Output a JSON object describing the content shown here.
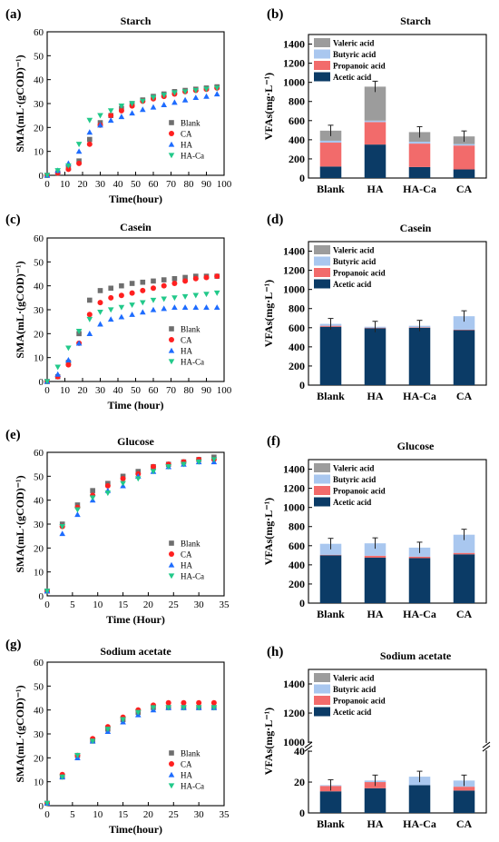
{
  "colors": {
    "blank": "#6e6e6e",
    "ca": "#ff2020",
    "ha": "#1e6cff",
    "haca": "#22c98a",
    "acetic": "#0b3b66",
    "propanoic": "#f26b6b",
    "butyric": "#a9c7ef",
    "valeric": "#9c9c9c"
  },
  "chart_data": [
    {
      "panel": "(a)",
      "type": "scatter",
      "title": "Starch",
      "xlabel": "Time(hour)",
      "ylabel": "SMA(mL·(gCOD)⁻¹)",
      "xlim": [
        0,
        100
      ],
      "ylim": [
        0,
        60
      ],
      "xticks": [
        0,
        10,
        20,
        30,
        40,
        50,
        60,
        70,
        80,
        90,
        100
      ],
      "yticks": [
        0,
        10,
        20,
        30,
        40,
        50,
        60
      ],
      "legend": "bottom-right",
      "series": [
        {
          "name": "Blank",
          "x": [
            0,
            6,
            12,
            18,
            24,
            30,
            36,
            42,
            48,
            54,
            60,
            66,
            72,
            78,
            84,
            90,
            96
          ],
          "y": [
            0,
            1,
            3,
            6,
            15,
            22,
            25,
            28,
            30,
            31.5,
            33,
            34,
            35,
            35.5,
            36,
            36.5,
            37
          ]
        },
        {
          "name": "CA",
          "x": [
            0,
            6,
            12,
            18,
            24,
            30,
            36,
            42,
            48,
            54,
            60,
            66,
            72,
            78,
            84,
            90,
            96
          ],
          "y": [
            0,
            1,
            2.5,
            5,
            13,
            21,
            25,
            27,
            29,
            31,
            32,
            33,
            34,
            35,
            35.5,
            36,
            36.5
          ]
        },
        {
          "name": "HA",
          "x": [
            0,
            6,
            12,
            18,
            24,
            30,
            36,
            42,
            48,
            54,
            60,
            66,
            72,
            78,
            84,
            90,
            96
          ],
          "y": [
            0,
            2,
            5,
            10,
            18,
            21,
            23,
            24.5,
            26,
            27.5,
            28.5,
            29.5,
            30.5,
            31.5,
            32.5,
            33,
            34
          ]
        },
        {
          "name": "HA-Ca",
          "x": [
            0,
            6,
            12,
            18,
            24,
            30,
            36,
            42,
            48,
            54,
            60,
            66,
            72,
            78,
            84,
            90,
            96
          ],
          "y": [
            0,
            2,
            4,
            13,
            23,
            25,
            27,
            29,
            30,
            31,
            32.5,
            33.5,
            34.5,
            35,
            35.5,
            36,
            36.5
          ]
        }
      ]
    },
    {
      "panel": "(b)",
      "type": "bar",
      "title": "Starch",
      "ylabel": "VFAs(mg·L⁻¹)",
      "ylim": [
        0,
        1500
      ],
      "yticks": [
        0,
        200,
        400,
        600,
        800,
        1000,
        1200,
        1400
      ],
      "categories": [
        "Blank",
        "HA",
        "HA-Ca",
        "CA"
      ],
      "legend": "top-left",
      "series": [
        {
          "name": "Acetic acid",
          "values": [
            120,
            350,
            115,
            90
          ]
        },
        {
          "name": "Propanoic acid",
          "values": [
            250,
            235,
            245,
            250
          ]
        },
        {
          "name": "Butyric acid",
          "values": [
            20,
            15,
            20,
            15
          ]
        },
        {
          "name": "Valeric acid",
          "values": [
            105,
            355,
            100,
            80
          ]
        }
      ],
      "totals": [
        495,
        955,
        480,
        435
      ]
    },
    {
      "panel": "(c)",
      "type": "scatter",
      "title": "Casein",
      "xlabel": "Time (hour)",
      "ylabel": "SMA(mL·(gCOD)⁻¹)",
      "xlim": [
        0,
        100
      ],
      "ylim": [
        0,
        60
      ],
      "xticks": [
        0,
        10,
        20,
        30,
        40,
        50,
        60,
        70,
        80,
        90,
        100
      ],
      "yticks": [
        0,
        10,
        20,
        30,
        40,
        50,
        60
      ],
      "legend": "bottom-right",
      "series": [
        {
          "name": "Blank",
          "x": [
            0,
            6,
            12,
            18,
            24,
            30,
            36,
            42,
            48,
            54,
            60,
            66,
            72,
            78,
            84,
            90,
            96
          ],
          "y": [
            0,
            2,
            8,
            20,
            34,
            38,
            39,
            40,
            41,
            41.5,
            42,
            42.5,
            43,
            43.5,
            44,
            44,
            44
          ]
        },
        {
          "name": "CA",
          "x": [
            0,
            6,
            12,
            18,
            24,
            30,
            36,
            42,
            48,
            54,
            60,
            66,
            72,
            78,
            84,
            90,
            96
          ],
          "y": [
            0,
            2,
            7,
            16,
            28,
            33,
            35,
            36,
            37,
            38,
            39,
            40,
            41,
            42,
            43,
            43.5,
            44
          ]
        },
        {
          "name": "HA",
          "x": [
            0,
            6,
            12,
            18,
            24,
            30,
            36,
            42,
            48,
            54,
            60,
            66,
            72,
            78,
            84,
            90,
            96
          ],
          "y": [
            0,
            3,
            9,
            16,
            20,
            24,
            26,
            27,
            28,
            29,
            30,
            30.5,
            31,
            31,
            31,
            31,
            31
          ]
        },
        {
          "name": "HA-Ca",
          "x": [
            0,
            6,
            12,
            18,
            24,
            30,
            36,
            42,
            48,
            54,
            60,
            66,
            72,
            78,
            84,
            90,
            96
          ],
          "y": [
            0,
            6,
            14,
            21,
            26,
            29,
            30,
            31,
            32,
            33,
            34,
            34.5,
            35,
            35.5,
            36,
            36.5,
            37
          ]
        }
      ]
    },
    {
      "panel": "(d)",
      "type": "bar",
      "title": "Casein",
      "ylabel": "VFAs(mg·L⁻¹)",
      "ylim": [
        0,
        1500
      ],
      "yticks": [
        0,
        200,
        400,
        600,
        800,
        1000,
        1200,
        1400
      ],
      "categories": [
        "Blank",
        "HA",
        "HA-Ca",
        "CA"
      ],
      "legend": "top-left",
      "series": [
        {
          "name": "Acetic acid",
          "values": [
            610,
            595,
            600,
            575
          ]
        },
        {
          "name": "Propanoic acid",
          "values": [
            10,
            5,
            5,
            5
          ]
        },
        {
          "name": "Butyric acid",
          "values": [
            20,
            10,
            15,
            140
          ]
        },
        {
          "name": "Valeric acid",
          "values": [
            0,
            0,
            0,
            0
          ]
        }
      ],
      "totals": [
        640,
        610,
        620,
        720
      ]
    },
    {
      "panel": "(e)",
      "type": "scatter",
      "title": "Glucose",
      "xlabel": "Time (Hour)",
      "ylabel": "SMA(mL·(gCOD)⁻¹)",
      "xlim": [
        0,
        35
      ],
      "ylim": [
        0,
        60
      ],
      "xticks": [
        0,
        5,
        10,
        15,
        20,
        25,
        30,
        35
      ],
      "yticks": [
        0,
        10,
        20,
        30,
        40,
        50,
        60
      ],
      "legend": "bottom-right",
      "series": [
        {
          "name": "Blank",
          "x": [
            0,
            3,
            6,
            9,
            12,
            15,
            18,
            21,
            24,
            27,
            30,
            33
          ],
          "y": [
            2,
            30,
            38,
            44,
            47,
            50,
            52,
            54,
            55,
            56,
            57,
            58
          ]
        },
        {
          "name": "CA",
          "x": [
            0,
            3,
            6,
            9,
            12,
            15,
            18,
            21,
            24,
            27,
            30,
            33
          ],
          "y": [
            2,
            29,
            37,
            42,
            46,
            49,
            51,
            54,
            55,
            56,
            57,
            57
          ]
        },
        {
          "name": "HA",
          "x": [
            0,
            3,
            6,
            9,
            12,
            15,
            18,
            21,
            24,
            27,
            30,
            33
          ],
          "y": [
            2,
            26,
            34,
            40,
            44,
            46,
            50,
            52,
            54,
            55,
            56,
            56
          ]
        },
        {
          "name": "HA-Ca",
          "x": [
            0,
            3,
            6,
            9,
            12,
            15,
            18,
            21,
            24,
            27,
            30,
            33
          ],
          "y": [
            2,
            29,
            36,
            41,
            43,
            47,
            49,
            52,
            54,
            55,
            56,
            57
          ]
        }
      ]
    },
    {
      "panel": "(f)",
      "type": "bar",
      "title": "Glucose",
      "ylabel": "VFAs(mg·L⁻¹)",
      "ylim": [
        0,
        1500
      ],
      "yticks": [
        0,
        200,
        400,
        600,
        800,
        1000,
        1200,
        1400
      ],
      "categories": [
        "Blank",
        "HA",
        "HA-Ca",
        "CA"
      ],
      "legend": "top-left",
      "series": [
        {
          "name": "Acetic acid",
          "values": [
            500,
            475,
            470,
            510
          ]
        },
        {
          "name": "Propanoic acid",
          "values": [
            5,
            20,
            15,
            15
          ]
        },
        {
          "name": "Butyric acid",
          "values": [
            115,
            130,
            95,
            190
          ]
        },
        {
          "name": "Valeric acid",
          "values": [
            0,
            0,
            0,
            0
          ]
        }
      ],
      "totals": [
        620,
        625,
        580,
        715
      ]
    },
    {
      "panel": "(g)",
      "type": "scatter",
      "title": "Sodium acetate",
      "xlabel": "Time(hour)",
      "ylabel": "SMA(mL·(gCOD)⁻¹)",
      "xlim": [
        0,
        35
      ],
      "ylim": [
        0,
        60
      ],
      "xticks": [
        0,
        5,
        10,
        15,
        20,
        25,
        30,
        35
      ],
      "yticks": [
        0,
        10,
        20,
        30,
        40,
        50,
        60
      ],
      "legend": "bottom-right",
      "series": [
        {
          "name": "Blank",
          "x": [
            0,
            3,
            6,
            9,
            12,
            15,
            18,
            21,
            24,
            27,
            30,
            33
          ],
          "y": [
            1,
            12,
            21,
            27,
            32,
            36,
            39,
            41,
            41,
            41,
            41,
            41
          ]
        },
        {
          "name": "CA",
          "x": [
            0,
            3,
            6,
            9,
            12,
            15,
            18,
            21,
            24,
            27,
            30,
            33
          ],
          "y": [
            1,
            13,
            21,
            28,
            33,
            37,
            40,
            42,
            43,
            43,
            43,
            43
          ]
        },
        {
          "name": "HA",
          "x": [
            0,
            3,
            6,
            9,
            12,
            15,
            18,
            21,
            24,
            27,
            30,
            33
          ],
          "y": [
            1,
            12,
            20,
            27,
            31,
            35,
            38,
            40,
            41,
            41,
            41,
            41
          ]
        },
        {
          "name": "HA-Ca",
          "x": [
            0,
            3,
            6,
            9,
            12,
            15,
            18,
            21,
            24,
            27,
            30,
            33
          ],
          "y": [
            1,
            12,
            21,
            27,
            32,
            36,
            39,
            41,
            41,
            41,
            41,
            41
          ]
        }
      ]
    },
    {
      "panel": "(h)",
      "type": "bar",
      "title": "Sodium acetate",
      "ylabel": "VFAs(mg·L⁻¹)",
      "axis_break": true,
      "lower_ylim": [
        0,
        40
      ],
      "lower_yticks": [
        0,
        20,
        40
      ],
      "upper_ylim": [
        1000,
        1500
      ],
      "upper_yticks": [
        1000,
        1200,
        1400
      ],
      "categories": [
        "Blank",
        "HA",
        "HA-Ca",
        "CA"
      ],
      "legend": "top-left",
      "series": [
        {
          "name": "Acetic acid",
          "values": [
            14,
            16,
            18,
            14.5
          ]
        },
        {
          "name": "Propanoic acid",
          "values": [
            3.5,
            4,
            0,
            2.5
          ]
        },
        {
          "name": "Butyric acid",
          "values": [
            0.5,
            1,
            5.5,
            4
          ]
        },
        {
          "name": "Valeric acid",
          "values": [
            0,
            0,
            0,
            0
          ]
        }
      ],
      "totals": [
        18,
        21,
        23.5,
        21
      ]
    }
  ]
}
